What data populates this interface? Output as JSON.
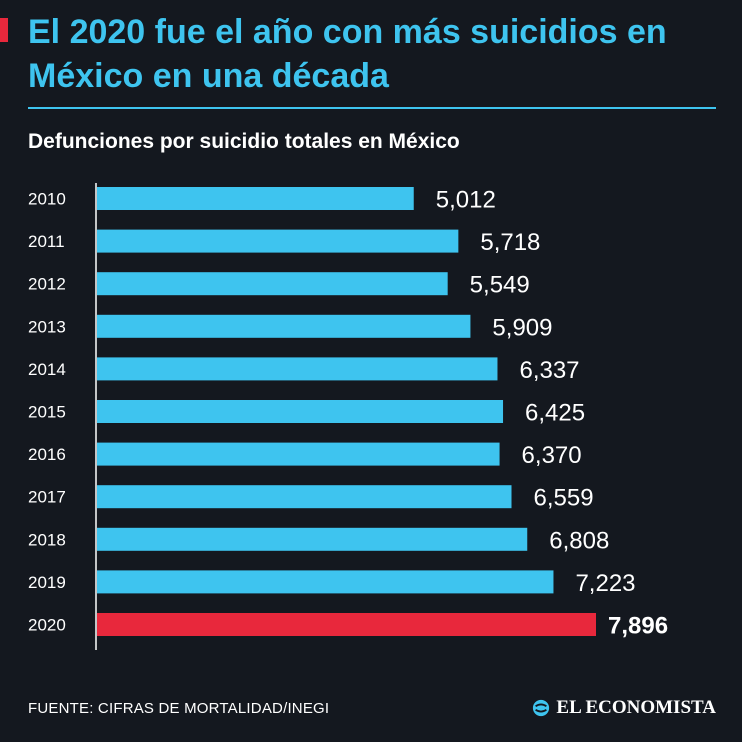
{
  "header": {
    "title": "El 2020 fue el año con más suicidios en México en una década",
    "subtitle": "Defunciones por suicidio totales en México"
  },
  "footer": {
    "source": "FUENTE: CIFRAS DE MORTALIDAD/INEGI",
    "brand": "EL ECONOMISTA",
    "brand_icon": "el-economista-logo-icon"
  },
  "colors": {
    "background": "#14181f",
    "bar": "#3ec4ef",
    "highlight": "#e8283c",
    "title": "#3ec4ef"
  },
  "chart_data": {
    "type": "bar",
    "orientation": "horizontal",
    "categories": [
      "2010",
      "2011",
      "2012",
      "2013",
      "2014",
      "2015",
      "2016",
      "2017",
      "2018",
      "2019",
      "2020"
    ],
    "values": [
      5012,
      5718,
      5549,
      5909,
      6337,
      6425,
      6370,
      6559,
      6808,
      7223,
      7896
    ],
    "value_labels": [
      "5,012",
      "5,718",
      "5,549",
      "5,909",
      "6,337",
      "6,425",
      "6,370",
      "6,559",
      "6,808",
      "7,223",
      "7,896"
    ],
    "highlight_category": "2020",
    "title": "Defunciones por suicidio totales en México",
    "xlabel": "",
    "ylabel": "",
    "xlim": [
      0,
      7896
    ],
    "grid": false,
    "legend": "none"
  }
}
